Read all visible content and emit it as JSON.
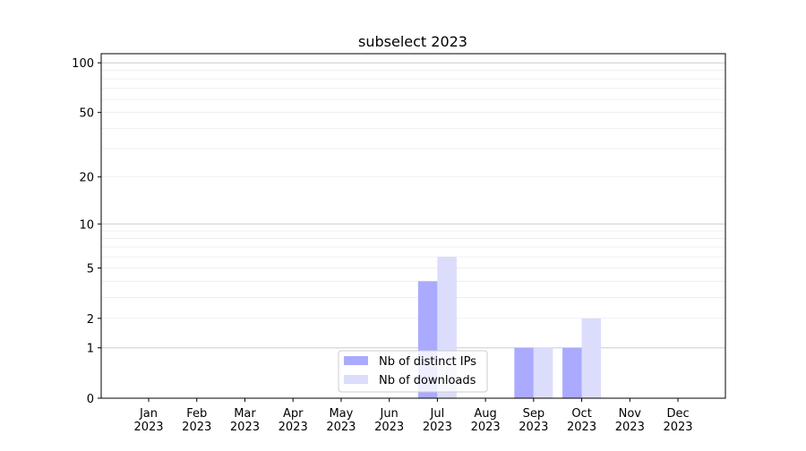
{
  "chart_data": {
    "type": "bar",
    "title": "subselect 2023",
    "xlabel": "",
    "ylabel": "",
    "y_scale": "log(1+x)",
    "ylim": [
      0,
      113
    ],
    "grid": "horizontal major and minor",
    "legend_placement": "lower center",
    "categories": [
      "Jan\n2023",
      "Feb\n2023",
      "Mar\n2023",
      "Apr\n2023",
      "May\n2023",
      "Jun\n2023",
      "Jul\n2023",
      "Aug\n2023",
      "Sep\n2023",
      "Oct\n2023",
      "Nov\n2023",
      "Dec\n2023"
    ],
    "y_ticks": [
      0,
      1,
      2,
      5,
      10,
      20,
      50,
      100
    ],
    "y_tick_labels": [
      "0",
      "1",
      "2",
      "5",
      "10",
      "20",
      "50",
      "100"
    ],
    "series": [
      {
        "name": "Nb of distinct IPs",
        "color": "#aaaaff",
        "values": [
          0,
          0,
          0,
          0,
          0,
          0,
          4,
          0,
          1,
          1,
          0,
          0
        ]
      },
      {
        "name": "Nb of downloads",
        "color": "#dcdcfc",
        "values": [
          0,
          0,
          0,
          0,
          0,
          0,
          6,
          0,
          1,
          2,
          0,
          0
        ]
      }
    ]
  }
}
